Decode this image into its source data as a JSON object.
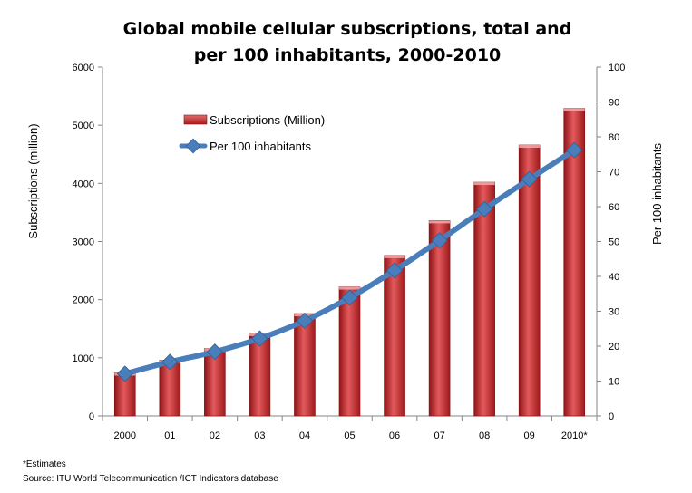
{
  "chart_data": {
    "type": "bar+line",
    "title_lines": [
      "Global mobile cellular subscriptions, total and",
      "per 100 inhabitants, 2000-2010"
    ],
    "categories": [
      "2000",
      "01",
      "02",
      "03",
      "04",
      "05",
      "06",
      "07",
      "08",
      "09",
      "2010*"
    ],
    "left_axis": {
      "label": "Subscriptions (million)",
      "ylim": [
        0,
        6000
      ],
      "ticks": [
        "0",
        "1000",
        "2000",
        "3000",
        "4000",
        "5000",
        "6000"
      ]
    },
    "right_axis": {
      "label": "Per 100 inhabitants",
      "ylim": [
        0,
        100
      ],
      "ticks": [
        "0",
        "10",
        "20",
        "30",
        "40",
        "50",
        "60",
        "70",
        "80",
        "90",
        "100"
      ]
    },
    "series": [
      {
        "name": "Subscriptions (Million)",
        "kind": "bar",
        "axis": "left",
        "color": "#c0282b",
        "values": [
          740,
          960,
          1160,
          1420,
          1760,
          2220,
          2760,
          3360,
          4020,
          4660,
          5290
        ]
      },
      {
        "name": "Per 100 inhabitants",
        "kind": "line",
        "axis": "right",
        "color": "#4a7ebb",
        "values": [
          12.1,
          15.5,
          18.4,
          22.2,
          27.3,
          33.9,
          41.7,
          50.3,
          59.3,
          67.9,
          76.2
        ]
      }
    ],
    "grid": false,
    "legend_position": "top-left inside plot"
  },
  "footnotes": {
    "estimates": "*Estimates",
    "source": "Source:  ITU World Telecommunication /ICT Indicators database"
  }
}
